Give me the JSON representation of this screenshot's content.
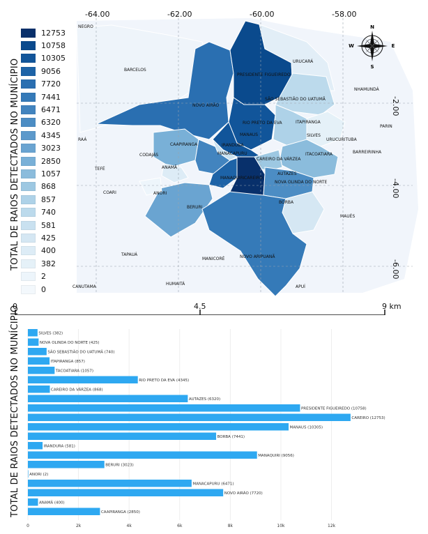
{
  "map": {
    "top_ticks": [
      "-64.00",
      "-62.00",
      "-60.00",
      "-58.00"
    ],
    "right_ticks": [
      "-2.00",
      "-4.00",
      "-6.00"
    ],
    "y_title": "TOTAL DE RAIOS DETECTADOS NO MUNÍCIPIO",
    "legend": [
      {
        "label": "12753",
        "color": "#08306b"
      },
      {
        "label": "10758",
        "color": "#0a4a8d"
      },
      {
        "label": "10305",
        "color": "#11559a"
      },
      {
        "label": "9056",
        "color": "#1d63a7"
      },
      {
        "label": "7720",
        "color": "#2a6fb1"
      },
      {
        "label": "7441",
        "color": "#357ab8"
      },
      {
        "label": "6471",
        "color": "#4284bf"
      },
      {
        "label": "6320",
        "color": "#4c8dc4"
      },
      {
        "label": "4345",
        "color": "#5c99cb"
      },
      {
        "label": "3023",
        "color": "#6aa4d1"
      },
      {
        "label": "2850",
        "color": "#79b0d7"
      },
      {
        "label": "1057",
        "color": "#8bbcdc"
      },
      {
        "label": "868",
        "color": "#9dc8e2"
      },
      {
        "label": "857",
        "color": "#aed2e8"
      },
      {
        "label": "740",
        "color": "#bcdaec"
      },
      {
        "label": "581",
        "color": "#c9e1f0"
      },
      {
        "label": "425",
        "color": "#d5e7f3"
      },
      {
        "label": "400",
        "color": "#ddecf6"
      },
      {
        "label": "382",
        "color": "#e5f1f8"
      },
      {
        "label": "2",
        "color": "#edf5fb"
      },
      {
        "label": "0",
        "color": "#f3f8fc"
      }
    ],
    "scale": {
      "labels": [
        "0",
        "4.5",
        "9 km"
      ]
    },
    "compass": {
      "n": "N",
      "s": "S",
      "e": "E",
      "w": "W"
    },
    "place_labels": {
      "negro": "NEGRO",
      "barcelos": "BARCELOS",
      "novo_airao": "NOVO AIRÃO",
      "presidente_figueiredo": "PRESIDENTE FIGUEIREDO",
      "urucara": "URUCARÁ",
      "nhamunda": "NHAMUNDÁ",
      "sao_sebastiao": "SÃO SEBASTIÃO DO UATUMÃ",
      "rio_preto": "RIO PRETO DA EVA",
      "manaus": "MANAUS",
      "itapiranga": "ITAPIRANGA",
      "silves": "SILVES",
      "urucurituba": "URUCURITUBA",
      "parin": "PARIN",
      "barreirinha": "BARREIRINHA",
      "itacoatiara": "ITACOATIARA",
      "raa": "RAÁ",
      "codajas": "CODAJÁS",
      "caapiranga": "CAAPIRANGA",
      "iranduba": "IRANDUBA",
      "manacapuru": "MANACAPURU",
      "careiro_varzea": "CAREIRO DA VÁRZEA",
      "autazes": "AUTAZES",
      "nova_olinda": "NOVA OLINDA DO NORTE",
      "tefe": "TEFÉ",
      "anama": "ANAMÃ",
      "manaquiri": "MANAQUIRI",
      "careiro": "CAREIRO",
      "coari": "COARI",
      "anori": "ANORI",
      "beruri": "BERURI",
      "borba": "BORBA",
      "maues": "MAUÉS",
      "tapaua": "TAPAUÁ",
      "manicore": "MANICORÉ",
      "novo_aripuana": "NOVO ARIPUANÃ",
      "canutama": "CANUTAMA",
      "humaita": "HUMAITÁ",
      "apui": "APUÍ"
    }
  },
  "bar": {
    "y_title": "TOTAL DE RAIOS DETECTADOS NO MUNÍCIPIO",
    "x_ticks": [
      "0",
      "2k",
      "4k",
      "6k",
      "8k",
      "10k",
      "12k"
    ]
  },
  "chart_data": {
    "type": "bar",
    "orientation": "horizontal",
    "categories": [
      "SILVES",
      "NOVA OLINDA DO NORTE",
      "SÃO SEBASTIÃO DO UATUMÃ",
      "ITAPIRANGA",
      "ITACOATIARA",
      "RIO PRETO DA EVA",
      "CAREIRO DA VÁRZEA",
      "AUTAZES",
      "PRESIDENTE FIGUEIREDO",
      "CAREIRO",
      "MANAUS",
      "BORBA",
      "IRANDURA",
      "MANAQUIRI",
      "BERURI",
      "ANORI",
      "MANACAPURU",
      "NOVO AIRÃO",
      "ANAMÃ",
      "CAAPIRANGA"
    ],
    "values": [
      382,
      425,
      740,
      857,
      1057,
      4345,
      868,
      6320,
      10758,
      12753,
      10305,
      7441,
      581,
      9056,
      3023,
      2,
      6471,
      7720,
      400,
      2850
    ],
    "bar_labels": [
      "SILVES (382)",
      "NOVA OLINDA DO NORTE (425)",
      "SÃO SEBASTIÃO DO UATUMÃ (740)",
      "ITAPIRANGA (857)",
      "TACOATIARA (1057)",
      "RIO PRETO DA EVA (4345)",
      "CAREIRO DA VÁRZEA (868)",
      "AUTAZES (6320)",
      "PRESIDENTE FIGUEIREDO (10758)",
      "CAREIRO (12753)",
      "MANAUS (10305)",
      "BORBA (7441)",
      "IRANDURA (581)",
      "MANAQUIRI (9056)",
      "BERURI (3023)",
      "ANORI (2)",
      "MANACAPURU (6471)",
      "NOVO AIRÃO (7720)",
      "ANAMÃ (400)",
      "CAAPIRANGA (2850)"
    ],
    "xlim": [
      0,
      13500
    ],
    "ylabel": "TOTAL DE RAIOS DETECTADOS NO MUNÍCIPIO",
    "bar_color": "#2ea8f1",
    "grid": true
  }
}
